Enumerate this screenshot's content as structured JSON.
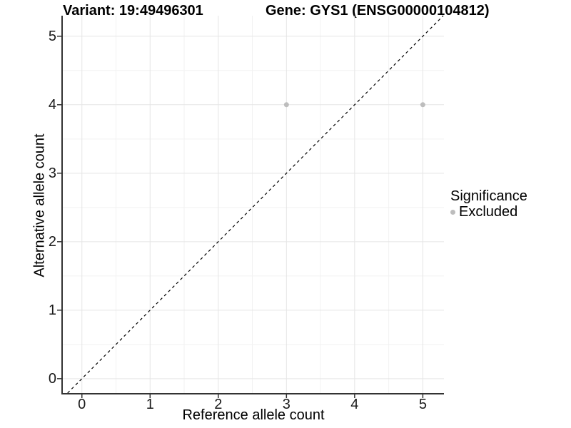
{
  "titles": {
    "variant": "Variant: 19:49496301",
    "gene": "Gene: GYS1 (ENSG00000104812)"
  },
  "chart_data": {
    "type": "scatter",
    "title_left": "Variant: 19:49496301",
    "title_right": "Gene: GYS1 (ENSG00000104812)",
    "xlabel": "Reference allele count",
    "ylabel": "Alternative allele count",
    "xlim": [
      -0.28,
      5.31
    ],
    "ylim": [
      -0.21,
      5.3
    ],
    "x_ticks": [
      0,
      1,
      2,
      3,
      4,
      5
    ],
    "y_ticks": [
      0,
      1,
      2,
      3,
      4,
      5
    ],
    "minor_grid_step": 0.5,
    "grid": true,
    "legend_position": "right",
    "series": [
      {
        "name": "Excluded",
        "points": [
          {
            "x": 3,
            "y": 4
          },
          {
            "x": 5,
            "y": 4
          }
        ]
      }
    ],
    "reference_line": {
      "kind": "identity y=x",
      "style": "dashed",
      "color": "#000000"
    },
    "legend": {
      "title": "Significance",
      "items": [
        {
          "label": "Excluded",
          "color": "#bdbdbd"
        }
      ]
    },
    "colors": {
      "point": "#bdbdbd",
      "grid_major": "#e5e5e5",
      "grid_minor": "#f2f2f2",
      "axis_line": "#333333",
      "tick_mark": "#333333"
    }
  }
}
